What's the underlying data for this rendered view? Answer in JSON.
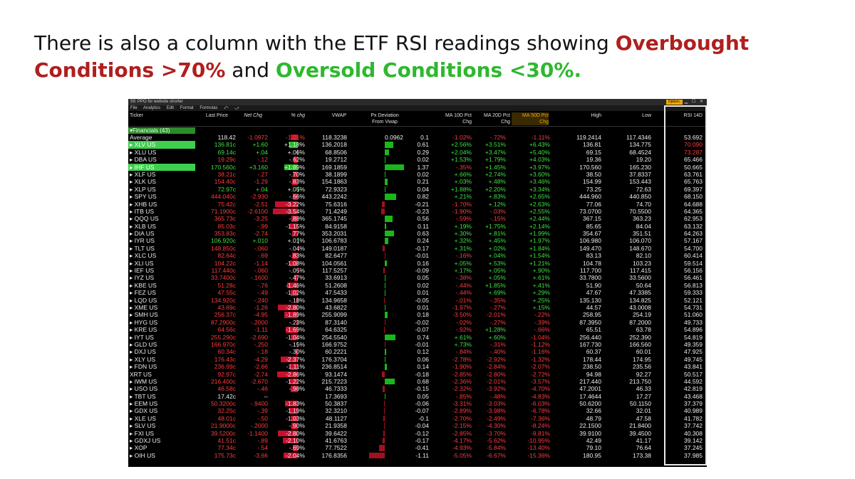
{
  "slide": {
    "title_part1": "There is also a column with the ETF RSI readings showing ",
    "overbought": "Overbought Conditions >70%",
    "title_part2": " and ",
    "oversold": "Oversold Conditions <30%.",
    "overbought_color": "#b01e1e",
    "oversold_color": "#2eb82e"
  },
  "window": {
    "title": "59: PPO for website shorter",
    "options_label": "Options",
    "menu": [
      "File",
      "Analytics",
      "Edit",
      "Format",
      "Formulas"
    ]
  },
  "columns": {
    "ticker": "Ticker",
    "last_price": "Last Price",
    "net_chg": "Net Chg",
    "pct_chg": "% chg",
    "vwap": "VWAP",
    "px_dev_1": "Px Deviation",
    "px_dev_2": "From Vwap",
    "ma10_1": "MA 10D Pct",
    "ma10_2": "Chg",
    "ma20_1": "MA 20D Pct",
    "ma20_2": "Chg",
    "ma50_1": "MA 50D Pct",
    "ma50_2": "Chg",
    "high": "High",
    "low": "Low",
    "rsi": "RSI 14D"
  },
  "group_label": "Financials (43)",
  "colors": {
    "positive": "#40e040",
    "negative": "#ff3b3b",
    "highlight": "#3fcf4f"
  },
  "rows": [
    {
      "ticker": "Average",
      "last": "118.42",
      "net": "-1.0972",
      "pct": "-1.01%",
      "vwap": "118.3238",
      "pxdev": "0.0962",
      "pxval": 0.0962,
      "pxv": "0.1",
      "m10": "-1.02%",
      "m20": "-.72%",
      "m50": "-1.11%",
      "high": "119.2414",
      "low": "117.4346",
      "rsi": "53.692"
    },
    {
      "ticker": "XLV US",
      "last": "136.81c",
      "net": "+1.60",
      "pct": "+1.18%",
      "vwap": "136.2018",
      "pxval": 0.61,
      "pxv": "0.61",
      "m10": "+2.56%",
      "m20": "+3.51%",
      "m50": "+6.43%",
      "high": "136.81",
      "low": "134.775",
      "rsi": "70.090",
      "hl": true
    },
    {
      "ticker": "XLU US",
      "last": "69.14c",
      "net": "+.04",
      "pct": "+.06%",
      "vwap": "68.8506",
      "pxval": 0.29,
      "pxv": "0.29",
      "m10": "+2.04%",
      "m20": "+3.47%",
      "m50": "+5.40%",
      "high": "69.15",
      "low": "68.4524",
      "rsi": "73.287"
    },
    {
      "ticker": "DBA US",
      "last": "19.29c",
      "net": "-.12",
      "pct": "-.62%",
      "vwap": "19.2712",
      "pxval": 0.02,
      "pxv": "0.02",
      "m10": "+1.53%",
      "m20": "+1.79%",
      "m50": "+4.03%",
      "high": "19.36",
      "low": "19.20",
      "rsi": "65.466"
    },
    {
      "ticker": "IHF US",
      "last": "170.560c",
      "net": "+3.160",
      "pct": "+1.89%",
      "vwap": "169.1859",
      "pxval": 1.37,
      "pxv": "1.37",
      "m10": "-.35%",
      "m20": "+1.45%",
      "m50": "+3.97%",
      "high": "170.560",
      "low": "165.230",
      "rsi": "50.665",
      "hl": true
    },
    {
      "ticker": "XLF US",
      "last": "38.21c",
      "net": "-.27",
      "pct": "-.70%",
      "vwap": "38.1899",
      "pxval": 0.02,
      "pxv": "0.02",
      "m10": "+.66%",
      "m20": "+2.74%",
      "m50": "+3.60%",
      "high": "38.50",
      "low": "37.8337",
      "rsi": "63.761"
    },
    {
      "ticker": "XLK US",
      "last": "154.40c",
      "net": "-1.29",
      "pct": "-.83%",
      "vwap": "154.1863",
      "pxval": 0.21,
      "pxv": "0.21",
      "m10": "+.03%",
      "m20": "+.48%",
      "m50": "+3.46%",
      "high": "154.99",
      "low": "153.443",
      "rsi": "65.763"
    },
    {
      "ticker": "XLP US",
      "last": "72.97c",
      "net": "+.04",
      "pct": "+.05%",
      "vwap": "72.9323",
      "pxval": 0.04,
      "pxv": "0.04",
      "m10": "+1.88%",
      "m20": "+2.20%",
      "m50": "+3.34%",
      "high": "73.25",
      "low": "72.63",
      "rsi": "69.397"
    },
    {
      "ticker": "SPY US",
      "last": "444.040c",
      "net": "-2.930",
      "pct": "-.66%",
      "vwap": "443.2242",
      "pxval": 0.82,
      "pxv": "0.82",
      "m10": "+.21%",
      "m20": "+.83%",
      "m50": "+2.65%",
      "high": "444.960",
      "low": "440.850",
      "rsi": "68.150"
    },
    {
      "ticker": "XHB US",
      "last": "75.42c",
      "net": "-2.51",
      "pct": "-3.22%",
      "vwap": "75.6316",
      "pxval": -0.21,
      "pxv": "-0.21",
      "m10": "-1.70%",
      "m20": "+.12%",
      "m50": "+2.63%",
      "high": "77.06",
      "low": "74.70",
      "rsi": "64.688"
    },
    {
      "ticker": "ITB US",
      "last": "71.1900c",
      "net": "-2.6100",
      "pct": "-3.54%",
      "vwap": "71.4249",
      "pxval": -0.23,
      "pxv": "-0.23",
      "m10": "-1.90%",
      "m20": "-.03%",
      "m50": "+2.55%",
      "high": "73.0700",
      "low": "70.5500",
      "rsi": "64.365"
    },
    {
      "ticker": "QQQ US",
      "last": "365.73c",
      "net": "-3.25",
      "pct": "-.88%",
      "vwap": "365.1745",
      "pxval": 0.56,
      "pxv": "0.56",
      "m10": "-.59%",
      "m20": "-.15%",
      "m50": "+2.44%",
      "high": "367.15",
      "low": "363.23",
      "rsi": "62.953"
    },
    {
      "ticker": "XLB US",
      "last": "85.03c",
      "net": "-.99",
      "pct": "-1.15%",
      "vwap": "84.9158",
      "pxval": 0.11,
      "pxv": "0.11",
      "m10": "+.19%",
      "m20": "+1.75%",
      "m50": "+2.14%",
      "high": "85.65",
      "low": "84.04",
      "rsi": "63.132"
    },
    {
      "ticker": "DIA US",
      "last": "353.83c",
      "net": "-2.74",
      "pct": "-.77%",
      "vwap": "353.2031",
      "pxval": 0.63,
      "pxv": "0.63",
      "m10": "+.30%",
      "m20": "+.81%",
      "m50": "+1.99%",
      "high": "354.67",
      "low": "351.51",
      "rsi": "64.263"
    },
    {
      "ticker": "IYR US",
      "last": "106.920c",
      "net": "+.010",
      "pct": "+.01%",
      "vwap": "106.6783",
      "pxval": 0.24,
      "pxv": "0.24",
      "m10": "+.32%",
      "m20": "+.45%",
      "m50": "+1.97%",
      "high": "106.980",
      "low": "106.070",
      "rsi": "57.167"
    },
    {
      "ticker": "TLT US",
      "last": "148.850c",
      "net": "-.060",
      "pct": "-.04%",
      "vwap": "149.0187",
      "pxval": -0.17,
      "pxv": "-0.17",
      "m10": "+.31%",
      "m20": "+.02%",
      "m50": "+1.84%",
      "high": "149.470",
      "low": "148.670",
      "rsi": "54.700"
    },
    {
      "ticker": "XLC US",
      "last": "82.64c",
      "net": "-.69",
      "pct": "-.83%",
      "vwap": "82.6477",
      "pxval": -0.01,
      "pxv": "-0.01",
      "m10": "-.16%",
      "m20": "+.04%",
      "m50": "+1.54%",
      "high": "83.13",
      "low": "82.10",
      "rsi": "60.414"
    },
    {
      "ticker": "XLI US",
      "last": "104.22c",
      "net": "-1.14",
      "pct": "-1.08%",
      "vwap": "104.0561",
      "pxval": 0.16,
      "pxv": "0.16",
      "m10": "+.05%",
      "m20": "+.53%",
      "m50": "+1.21%",
      "high": "104.78",
      "low": "103.23",
      "rsi": "59.514"
    },
    {
      "ticker": "IEF US",
      "last": "117.440c",
      "net": "-.060",
      "pct": "-.05%",
      "vwap": "117.5257",
      "pxval": -0.09,
      "pxv": "-0.09",
      "m10": "+.17%",
      "m20": "+.05%",
      "m50": "+.90%",
      "high": "117.700",
      "low": "117.415",
      "rsi": "56.156"
    },
    {
      "ticker": "IYZ US",
      "last": "33.7400c",
      "net": "-.1600",
      "pct": "-.47%",
      "vwap": "33.6913",
      "pxval": 0.05,
      "pxv": "0.05",
      "m10": "-.38%",
      "m20": "+.05%",
      "m50": "+.61%",
      "high": "33.7800",
      "low": "33.5600",
      "rsi": "56.461"
    },
    {
      "ticker": "KBE US",
      "last": "51.28c",
      "net": "-.76",
      "pct": "-1.46%",
      "vwap": "51.2608",
      "pxval": 0.02,
      "pxv": "0.02",
      "m10": "-.44%",
      "m20": "+1.85%",
      "m50": "+.41%",
      "high": "51.90",
      "low": "50.64",
      "rsi": "56.813"
    },
    {
      "ticker": "FEZ US",
      "last": "47.55c",
      "net": "-.49",
      "pct": "-1.02%",
      "vwap": "47.5433",
      "pxval": 0.01,
      "pxv": "0.01",
      "m10": "-.44%",
      "m20": "+.69%",
      "m50": "+.29%",
      "high": "47.67",
      "low": "47.3385",
      "rsi": "59.333"
    },
    {
      "ticker": "LQD US",
      "last": "134.920c",
      "net": "-.240",
      "pct": "-.18%",
      "vwap": "134.9658",
      "pxval": -0.05,
      "pxv": "-0.05",
      "m10": "-.01%",
      "m20": "-.35%",
      "m50": "+.25%",
      "high": "135.130",
      "low": "134.825",
      "rsi": "52.121"
    },
    {
      "ticker": "XME US",
      "last": "43.69c",
      "net": "-1.26",
      "pct": "-2.80%",
      "vwap": "43.6822",
      "pxval": 0.01,
      "pxv": "0.01",
      "m10": "-1.97%",
      "m20": "-.27%",
      "m50": "+.15%",
      "high": "44.57",
      "low": "43.0008",
      "rsi": "54.731"
    },
    {
      "ticker": "SMH US",
      "last": "256.37c",
      "net": "-4.95",
      "pct": "-1.89%",
      "vwap": "255.9099",
      "pxval": 0.18,
      "pxv": "0.18",
      "m10": "-3.50%",
      "m20": "-2.01%",
      "m50": "-.22%",
      "high": "258.95",
      "low": "254.19",
      "rsi": "51.060"
    },
    {
      "ticker": "HYG US",
      "last": "87.2900c",
      "net": "-.2000",
      "pct": "-.23%",
      "vwap": "87.3140",
      "pxval": -0.02,
      "pxv": "-0.02",
      "m10": "-.02%",
      "m20": "-.27%",
      "m50": "-.39%",
      "high": "87.3950",
      "low": "87.2000",
      "rsi": "49.733"
    },
    {
      "ticker": "KRE US",
      "last": "64.56c",
      "net": "-1.11",
      "pct": "-1.69%",
      "vwap": "64.6325",
      "pxval": -0.07,
      "pxv": "-0.07",
      "m10": "-.92%",
      "m20": "+1.28%",
      "m50": "-.66%",
      "high": "65.51",
      "low": "63.78",
      "rsi": "54.896"
    },
    {
      "ticker": "IYT US",
      "last": "255.290c",
      "net": "-2.690",
      "pct": "-1.04%",
      "vwap": "254.5540",
      "pxval": 0.74,
      "pxv": "0.74",
      "m10": "+.61%",
      "m20": "+.60%",
      "m50": "-1.04%",
      "high": "256.440",
      "low": "252.390",
      "rsi": "54.819"
    },
    {
      "ticker": "GLD US",
      "last": "166.970c",
      "net": "-.250",
      "pct": "-.15%",
      "vwap": "166.9752",
      "pxval": -0.01,
      "pxv": "-0.01",
      "m10": "+.73%",
      "m20": "-.31%",
      "m50": "-1.12%",
      "high": "167.730",
      "low": "166.560",
      "rsi": "49.359"
    },
    {
      "ticker": "DXJ US",
      "last": "60.34c",
      "net": "-.18",
      "pct": "-.30%",
      "vwap": "60.2221",
      "pxval": 0.12,
      "pxv": "0.12",
      "m10": "-.84%",
      "m20": "-.40%",
      "m50": "-1.16%",
      "high": "60.37",
      "low": "60.01",
      "rsi": "47.925"
    },
    {
      "ticker": "XLY US",
      "last": "176.43c",
      "net": "-4.29",
      "pct": "-2.37%",
      "vwap": "176.3704",
      "pxval": 0.06,
      "pxv": "0.06",
      "m10": "-2.78%",
      "m20": "-2.92%",
      "m50": "-1.32%",
      "high": "178.44",
      "low": "174.95",
      "rsi": "49.745"
    },
    {
      "ticker": "FDN US",
      "last": "236.99c",
      "net": "-2.66",
      "pct": "-1.11%",
      "vwap": "236.8514",
      "pxval": 0.14,
      "pxv": "0.14",
      "m10": "-1.90%",
      "m20": "-2.84%",
      "m50": "-2.07%",
      "high": "238.50",
      "low": "235.56",
      "rsi": "43.841"
    },
    {
      "ticker": "XRT US",
      "last": "92.97c",
      "net": "-2.74",
      "pct": "-2.86%",
      "vwap": "93.1474",
      "pxval": -0.18,
      "pxv": "-0.18",
      "m10": "-2.85%",
      "m20": "-2.80%",
      "m50": "-2.72%",
      "high": "94.98",
      "low": "92.27",
      "rsi": "50.517",
      "nobullet": true
    },
    {
      "ticker": "IWM US",
      "last": "216.400c",
      "net": "-2.670",
      "pct": "-1.22%",
      "vwap": "215.7223",
      "pxval": 0.68,
      "pxv": "0.68",
      "m10": "-2.36%",
      "m20": "-2.01%",
      "m50": "-3.57%",
      "high": "217.440",
      "low": "213.750",
      "rsi": "44.592"
    },
    {
      "ticker": "USO US",
      "last": "46.58c",
      "net": "-.46",
      "pct": "-.98%",
      "vwap": "46.7333",
      "pxval": -0.15,
      "pxv": "-0.15",
      "m10": "-2.32%",
      "m20": "-3.92%",
      "m50": "-4.70%",
      "high": "47.2001",
      "low": "46.33",
      "rsi": "42.819"
    },
    {
      "ticker": "TBT US",
      "last": "17.42c",
      "net": "--",
      "pct": "",
      "vwap": "17.3693",
      "pxval": 0.05,
      "pxv": "0.05",
      "m10": "-.85%",
      "m20": "-.48%",
      "m50": "-4.83%",
      "high": "17.4644",
      "low": "17.27",
      "rsi": "43.468"
    },
    {
      "ticker": "EEM US",
      "last": "50.3200c",
      "net": "-.9400",
      "pct": "-1.83%",
      "vwap": "50.3837",
      "pxval": -0.06,
      "pxv": "-0.06",
      "m10": "-3.31%",
      "m20": "-3.03%",
      "m50": "-6.03%",
      "high": "50.6200",
      "low": "50.1150",
      "rsi": "37.379"
    },
    {
      "ticker": "GDX US",
      "last": "32.25c",
      "net": "-.39",
      "pct": "-1.19%",
      "vwap": "32.3210",
      "pxval": -0.07,
      "pxv": "-0.07",
      "m10": "-2.89%",
      "m20": "-3.98%",
      "m50": "-6.78%",
      "high": "32.66",
      "low": "32.01",
      "rsi": "40.989"
    },
    {
      "ticker": "XLE US",
      "last": "48.01c",
      "net": "-.50",
      "pct": "-1.03%",
      "vwap": "48.1127",
      "pxval": -0.1,
      "pxv": "-0.1",
      "m10": "-2.70%",
      "m20": "-2.49%",
      "m50": "-7.36%",
      "high": "48.79",
      "low": "47.58",
      "rsi": "41.782"
    },
    {
      "ticker": "SLV US",
      "last": "21.9000c",
      "net": "-.2000",
      "pct": "-.90%",
      "vwap": "21.9358",
      "pxval": -0.04,
      "pxv": "-0.04",
      "m10": "-2.15%",
      "m20": "-4.30%",
      "m50": "-8.24%",
      "high": "22.1500",
      "low": "21.8400",
      "rsi": "37.742"
    },
    {
      "ticker": "FXI US",
      "last": "39.5200c",
      "net": "-1.1400",
      "pct": "-2.80%",
      "vwap": "39.6422",
      "pxval": -0.12,
      "pxv": "-0.12",
      "m10": "-2.85%",
      "m20": "-3.70%",
      "m50": "-9.81%",
      "high": "39.9100",
      "low": "39.4500",
      "rsi": "40.308"
    },
    {
      "ticker": "GDXJ US",
      "last": "41.51c",
      "net": "-.89",
      "pct": "-2.10%",
      "vwap": "41.6763",
      "pxval": -0.17,
      "pxv": "-0.17",
      "m10": "-4.17%",
      "m20": "-5.62%",
      "m50": "-10.95%",
      "high": "42.49",
      "low": "41.17",
      "rsi": "39.142"
    },
    {
      "ticker": "XOP",
      "last": "77.34c",
      "net": "-.54",
      "pct": "-.69%",
      "vwap": "77.7522",
      "pxval": -0.41,
      "pxv": "-0.41",
      "m10": "-4.93%",
      "m20": "-5.84%",
      "m50": "-13.40%",
      "high": "79.10",
      "low": "76.64",
      "rsi": "37.245"
    },
    {
      "ticker": "OIH US",
      "last": "175.73c",
      "net": "-3.66",
      "pct": "-2.04%",
      "vwap": "176.8356",
      "pxval": -1.11,
      "pxv": "-1.11",
      "m10": "-5.05%",
      "m20": "-6.67%",
      "m50": "-15.36%",
      "high": "180.95",
      "low": "173.38",
      "rsi": "37.985"
    }
  ]
}
